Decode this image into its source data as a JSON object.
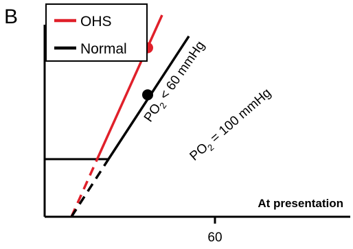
{
  "colors": {
    "ohs": "#e0202a",
    "normal": "#000000"
  },
  "chart_data": {
    "type": "line",
    "panel_label": "B",
    "xlabel": "At presentation",
    "ylabel": "",
    "xlim": [
      0,
      100
    ],
    "ylim": [
      0,
      100
    ],
    "ticks": [
      {
        "value": 50,
        "label": "60"
      }
    ],
    "legend": {
      "position": "top-left",
      "entries": [
        "OHS",
        "Normal"
      ]
    },
    "baseline_plateau": {
      "y": 30,
      "x_start": 0,
      "x_end": 31
    },
    "series": [
      {
        "name": "OHS",
        "color": "#e0202a",
        "annotation": "PO₂ < 60 mmHg",
        "dashed_segment": {
          "from": [
            13,
            0
          ],
          "to": [
            25.5,
            30
          ]
        },
        "solid_segment": {
          "from": [
            25.5,
            30
          ],
          "to": [
            57,
            105
          ]
        },
        "marker": {
          "x": 50,
          "y": 88
        }
      },
      {
        "name": "Normal",
        "color": "#000000",
        "annotation": "PO₂ = 100 mmHg",
        "dashed_segment": {
          "from": [
            13,
            0
          ],
          "to": [
            31,
            30
          ]
        },
        "solid_segment": {
          "from": [
            31,
            30
          ],
          "to": [
            70,
            94
          ]
        },
        "marker": {
          "x": 50,
          "y": 63.5
        }
      }
    ]
  }
}
